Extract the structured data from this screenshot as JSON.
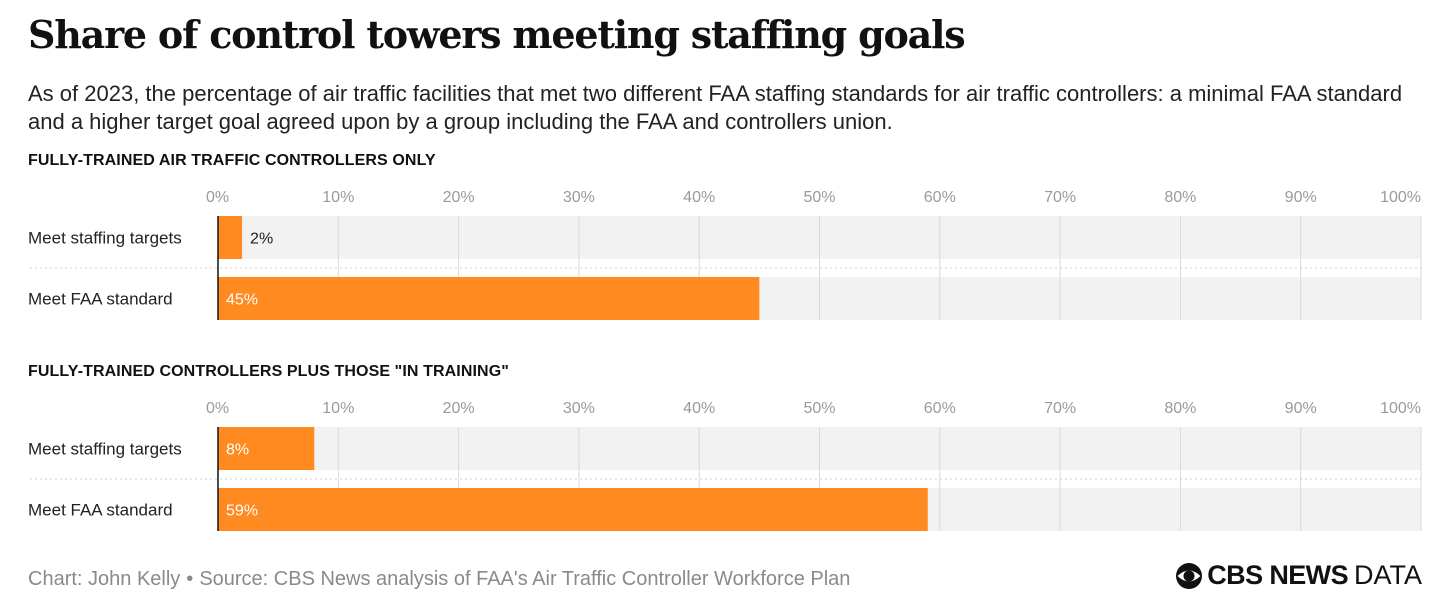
{
  "title": "Share of control towers meeting staffing goals",
  "subtitle": "As of 2023, the percentage of air traffic facilities that met two different FAA staffing standards for air traffic controllers: a minimal FAA standard and a higher target goal agreed upon by a group including the FAA and controllers union.",
  "colors": {
    "bar": "#FF8A1F",
    "track": "#F2F2F2",
    "grid": "#D9D9D9",
    "tick": "#9A9A9A"
  },
  "chart_data": [
    {
      "type": "bar",
      "orientation": "horizontal",
      "title": "FULLY-TRAINED AIR TRAFFIC CONTROLLERS ONLY",
      "categories": [
        "Meet staffing targets",
        "Meet FAA standard"
      ],
      "values": [
        2,
        45
      ],
      "value_labels": [
        "2%",
        "45%"
      ],
      "xlim": [
        0,
        100
      ],
      "ticks": [
        "0%",
        "10%",
        "20%",
        "30%",
        "40%",
        "50%",
        "60%",
        "70%",
        "80%",
        "90%",
        "100%"
      ],
      "grid": true
    },
    {
      "type": "bar",
      "orientation": "horizontal",
      "title": "FULLY-TRAINED CONTROLLERS PLUS THOSE \"IN TRAINING\"",
      "categories": [
        "Meet staffing targets",
        "Meet FAA standard"
      ],
      "values": [
        8,
        59
      ],
      "value_labels": [
        "8%",
        "59%"
      ],
      "xlim": [
        0,
        100
      ],
      "ticks": [
        "0%",
        "10%",
        "20%",
        "30%",
        "40%",
        "50%",
        "60%",
        "70%",
        "80%",
        "90%",
        "100%"
      ],
      "grid": true
    }
  ],
  "footer": {
    "credit": "Chart: John Kelly",
    "separator": "•",
    "source": "Source: CBS News analysis of FAA's Air Traffic Controller Workforce Plan"
  },
  "brand": {
    "name": "CBS NEWS",
    "suffix": "DATA",
    "logo_icon": "cbs-eye-icon"
  }
}
